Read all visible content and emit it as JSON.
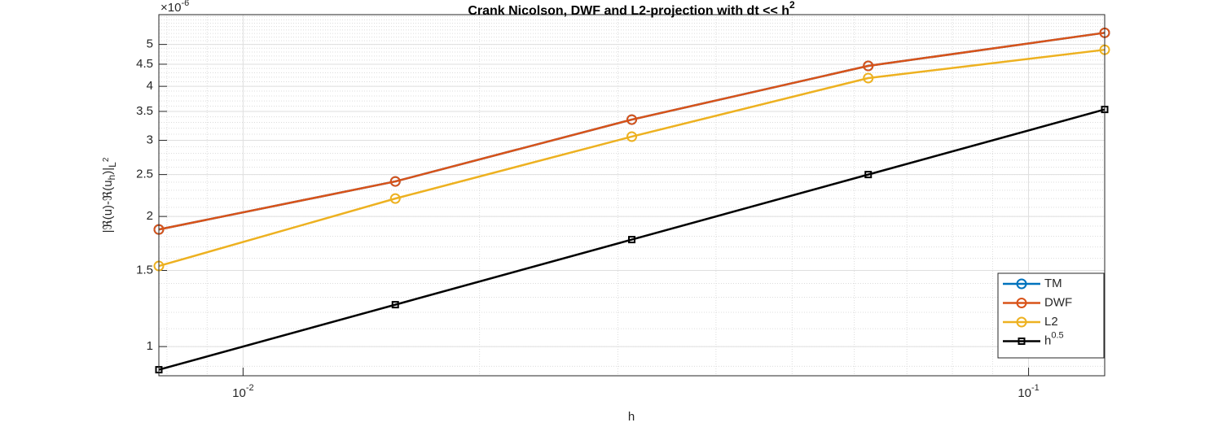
{
  "chart_data": {
    "type": "line",
    "title": "Crank Nicolson, DWF and L2-projection with dt << h",
    "title_superscript": "2",
    "xlabel": "h",
    "ylabel_parts": [
      "|ℜ(u)-ℜ(u",
      "h",
      ")|",
      "L",
      "2"
    ],
    "y_multiplier": "×10",
    "y_multiplier_exponent": "-6",
    "x": [
      0.0078125,
      0.015625,
      0.03125,
      0.0625,
      0.125
    ],
    "series": [
      {
        "name": "TM",
        "color": "#0072bd",
        "marker": "circle",
        "values": [
          1.866,
          2.41,
          3.35,
          4.46,
          5.32
        ]
      },
      {
        "name": "DWF",
        "color": "#d95319",
        "marker": "circle",
        "values": [
          1.866,
          2.41,
          3.35,
          4.46,
          5.32
        ]
      },
      {
        "name": "L2",
        "color": "#edb120",
        "marker": "circle",
        "values": [
          1.536,
          2.2,
          3.06,
          4.18,
          4.86
        ]
      },
      {
        "name": "h",
        "name_superscript": "0.5",
        "color": "#000000",
        "marker": "square",
        "values": [
          0.884,
          1.25,
          1.768,
          2.5,
          3.536
        ]
      }
    ],
    "xscale": "log",
    "yscale": "log",
    "xlim": [
      0.0078125,
      0.125
    ],
    "ylim": [
      0.856,
      5.86
    ],
    "xticks": [
      {
        "value": 0.01,
        "label": "10",
        "exponent": "-2"
      },
      {
        "value": 0.1,
        "label": "10",
        "exponent": "-1"
      }
    ],
    "yticks": [
      1,
      1.5,
      2,
      2.5,
      3,
      3.5,
      4,
      4.5,
      5
    ],
    "grid": true,
    "minor_grid": true,
    "legend": "lower right"
  }
}
